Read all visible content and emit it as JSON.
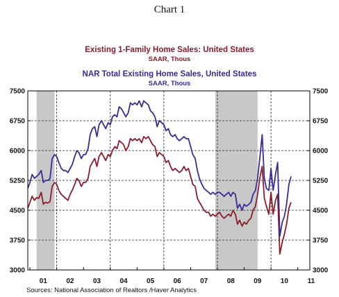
{
  "chart_data": {
    "type": "line",
    "title": "Chart 1",
    "source": "Sources:  National Association of Realtors /Haver Analytics",
    "ylim": [
      3000,
      7500
    ],
    "y_ticks": [
      "3000",
      "3750",
      "4500",
      "5250",
      "6000",
      "6750",
      "7500"
    ],
    "x_ticks": [
      "01",
      "02",
      "03",
      "04",
      "05",
      "06",
      "07",
      "08",
      "09",
      "10",
      "11"
    ],
    "xlim": [
      2000.92,
      2011.45
    ],
    "grid": "dashed",
    "legend_placement": "top-center",
    "recessions": [
      [
        2001.25,
        2001.92
      ],
      [
        2007.92,
        2009.5
      ]
    ],
    "series": [
      {
        "name": "Existing 1-Family Home Sales: United States",
        "unit": "SAAR, Thous",
        "color": "#8b1a2b",
        "x": [
          2000.92,
          2001.0,
          2001.08,
          2001.17,
          2001.25,
          2001.33,
          2001.42,
          2001.5,
          2001.58,
          2001.67,
          2001.75,
          2001.83,
          2001.92,
          2002.0,
          2002.08,
          2002.17,
          2002.25,
          2002.33,
          2002.42,
          2002.5,
          2002.58,
          2002.67,
          2002.75,
          2002.83,
          2002.92,
          2003.0,
          2003.08,
          2003.17,
          2003.25,
          2003.33,
          2003.42,
          2003.5,
          2003.58,
          2003.67,
          2003.75,
          2003.83,
          2003.92,
          2004.0,
          2004.08,
          2004.17,
          2004.25,
          2004.33,
          2004.42,
          2004.5,
          2004.58,
          2004.67,
          2004.75,
          2004.83,
          2004.92,
          2005.0,
          2005.08,
          2005.17,
          2005.25,
          2005.33,
          2005.42,
          2005.5,
          2005.58,
          2005.67,
          2005.75,
          2005.83,
          2005.92,
          2006.0,
          2006.08,
          2006.17,
          2006.25,
          2006.33,
          2006.42,
          2006.5,
          2006.58,
          2006.67,
          2006.75,
          2006.83,
          2006.92,
          2007.0,
          2007.08,
          2007.17,
          2007.25,
          2007.33,
          2007.42,
          2007.5,
          2007.58,
          2007.67,
          2007.75,
          2007.83,
          2007.92,
          2008.0,
          2008.08,
          2008.17,
          2008.25,
          2008.33,
          2008.42,
          2008.5,
          2008.58,
          2008.67,
          2008.75,
          2008.83,
          2008.92,
          2009.0,
          2009.08,
          2009.17,
          2009.25,
          2009.33,
          2009.42,
          2009.5,
          2009.58,
          2009.67,
          2009.75,
          2009.83,
          2009.92,
          2010.0,
          2010.08,
          2010.17,
          2010.25,
          2010.33,
          2010.42,
          2010.5,
          2010.58,
          2010.67,
          2010.75
        ],
        "values": [
          4550,
          4700,
          4850,
          4750,
          4820,
          4800,
          4950,
          4650,
          4700,
          4680,
          4720,
          5100,
          5200,
          5150,
          5000,
          4900,
          4850,
          4800,
          4750,
          4900,
          5000,
          5150,
          5300,
          5250,
          5100,
          5200,
          5200,
          5300,
          5600,
          5700,
          5800,
          5600,
          5850,
          5950,
          5850,
          5750,
          5900,
          5850,
          6000,
          6100,
          6050,
          6250,
          6200,
          6150,
          6000,
          6100,
          6300,
          6250,
          6300,
          6250,
          6300,
          6200,
          6350,
          6300,
          6350,
          6250,
          6150,
          6100,
          5850,
          5950,
          5900,
          5850,
          5700,
          5750,
          5600,
          5500,
          5550,
          5500,
          5450,
          5500,
          5600,
          5500,
          5550,
          5350,
          5150,
          5100,
          4800,
          4700,
          4600,
          4500,
          4450,
          4450,
          4350,
          4400,
          4350,
          4400,
          4450,
          4350,
          4300,
          4350,
          4400,
          4350,
          4500,
          4400,
          4150,
          4250,
          4100,
          4200,
          4150,
          4250,
          4300,
          4500,
          4600,
          4900,
          5300,
          5600,
          4800,
          4600,
          4400,
          4950,
          4400,
          4750,
          4900,
          3400,
          3700,
          3900,
          4150,
          4550,
          4700
        ]
      },
      {
        "name": "NAR Total Existing Home Sales, United States",
        "unit": "SAAR, Thous",
        "color": "#3a2a96",
        "x": [
          2000.92,
          2001.0,
          2001.08,
          2001.17,
          2001.25,
          2001.33,
          2001.42,
          2001.5,
          2001.58,
          2001.67,
          2001.75,
          2001.83,
          2001.92,
          2002.0,
          2002.08,
          2002.17,
          2002.25,
          2002.33,
          2002.42,
          2002.5,
          2002.58,
          2002.67,
          2002.75,
          2002.83,
          2002.92,
          2003.0,
          2003.08,
          2003.17,
          2003.25,
          2003.33,
          2003.42,
          2003.5,
          2003.58,
          2003.67,
          2003.75,
          2003.83,
          2003.92,
          2004.0,
          2004.08,
          2004.17,
          2004.25,
          2004.33,
          2004.42,
          2004.5,
          2004.58,
          2004.67,
          2004.75,
          2004.83,
          2004.92,
          2005.0,
          2005.08,
          2005.17,
          2005.25,
          2005.33,
          2005.42,
          2005.5,
          2005.58,
          2005.67,
          2005.75,
          2005.83,
          2005.92,
          2006.0,
          2006.08,
          2006.17,
          2006.25,
          2006.33,
          2006.42,
          2006.5,
          2006.58,
          2006.67,
          2006.75,
          2006.83,
          2006.92,
          2007.0,
          2007.08,
          2007.17,
          2007.25,
          2007.33,
          2007.42,
          2007.5,
          2007.58,
          2007.67,
          2007.75,
          2007.83,
          2007.92,
          2008.0,
          2008.08,
          2008.17,
          2008.25,
          2008.33,
          2008.42,
          2008.5,
          2008.58,
          2008.67,
          2008.75,
          2008.83,
          2008.92,
          2009.0,
          2009.08,
          2009.17,
          2009.25,
          2009.33,
          2009.42,
          2009.5,
          2009.58,
          2009.67,
          2009.75,
          2009.83,
          2009.92,
          2010.0,
          2010.08,
          2010.17,
          2010.25,
          2010.33,
          2010.42,
          2010.5,
          2010.58,
          2010.67,
          2010.75
        ],
        "values": [
          5050,
          5200,
          5400,
          5300,
          5350,
          5400,
          5500,
          5200,
          5250,
          5250,
          5300,
          5800,
          5900,
          5850,
          5700,
          5550,
          5500,
          5500,
          5450,
          5550,
          5650,
          5850,
          6000,
          5950,
          5800,
          5900,
          5900,
          6050,
          6400,
          6550,
          6600,
          6350,
          6650,
          6750,
          6650,
          6550,
          6700,
          6650,
          6850,
          6900,
          6850,
          7100,
          7050,
          6950,
          6850,
          6950,
          7200,
          7150,
          7200,
          7150,
          7250,
          7100,
          7250,
          7200,
          7150,
          7000,
          6950,
          6850,
          6600,
          6750,
          6700,
          6650,
          6500,
          6550,
          6400,
          6350,
          6400,
          6300,
          6250,
          6300,
          6350,
          6300,
          6300,
          6100,
          5900,
          5800,
          5500,
          5300,
          5150,
          5050,
          5000,
          4950,
          4900,
          4950,
          4900,
          4950,
          4950,
          4900,
          4850,
          4900,
          4950,
          4850,
          4950,
          4900,
          4550,
          4650,
          4500,
          4650,
          4600,
          4650,
          4700,
          4900,
          5000,
          5300,
          5800,
          6400,
          5300,
          5050,
          5000,
          5550,
          5000,
          5400,
          5700,
          3850,
          4200,
          4350,
          4650,
          5150,
          5350
        ]
      }
    ]
  }
}
